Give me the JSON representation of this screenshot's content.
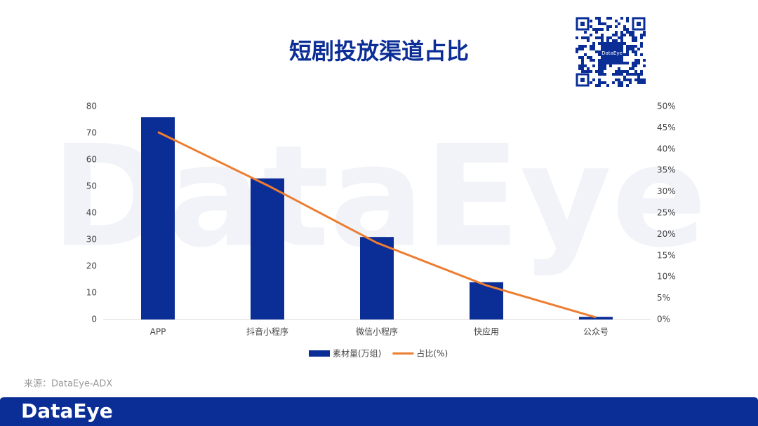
{
  "chart_data": {
    "type": "bar-line",
    "title": "短剧投放渠道占比",
    "categories": [
      "APP",
      "抖音小程序",
      "微信小程序",
      "快应用",
      "公众号"
    ],
    "series": [
      {
        "name": "素材量(万组)",
        "color": "#0b2d96",
        "type": "bar",
        "values": [
          76,
          53,
          31,
          14,
          1
        ]
      },
      {
        "name": "占比(%)",
        "color": "#ed7d31",
        "type": "line",
        "axis": "y2",
        "values": [
          44,
          31.5,
          18,
          8,
          0.5
        ]
      }
    ],
    "ylim": [
      0,
      80
    ],
    "yticks": [
      0,
      10,
      20,
      30,
      40,
      50,
      60,
      70,
      80
    ],
    "y2lim": [
      0,
      50
    ],
    "y2ticks": [
      {
        "value": 0,
        "label": "0%"
      },
      {
        "value": 5,
        "label": "5%"
      },
      {
        "value": 10,
        "label": "10%"
      },
      {
        "value": 15,
        "label": "15%"
      },
      {
        "value": 20,
        "label": "20%"
      },
      {
        "value": 25,
        "label": "25%"
      },
      {
        "value": 30,
        "label": "30%"
      },
      {
        "value": 35,
        "label": "35%"
      },
      {
        "value": 40,
        "label": "40%"
      },
      {
        "value": 45,
        "label": "45%"
      },
      {
        "value": 50,
        "label": "50%"
      }
    ],
    "grid": false,
    "legend": "bottom"
  },
  "watermark": "DataEye",
  "qr_label": "DataEye",
  "source": "来源：DataEye-ADX",
  "footer_logo": "DataEye"
}
